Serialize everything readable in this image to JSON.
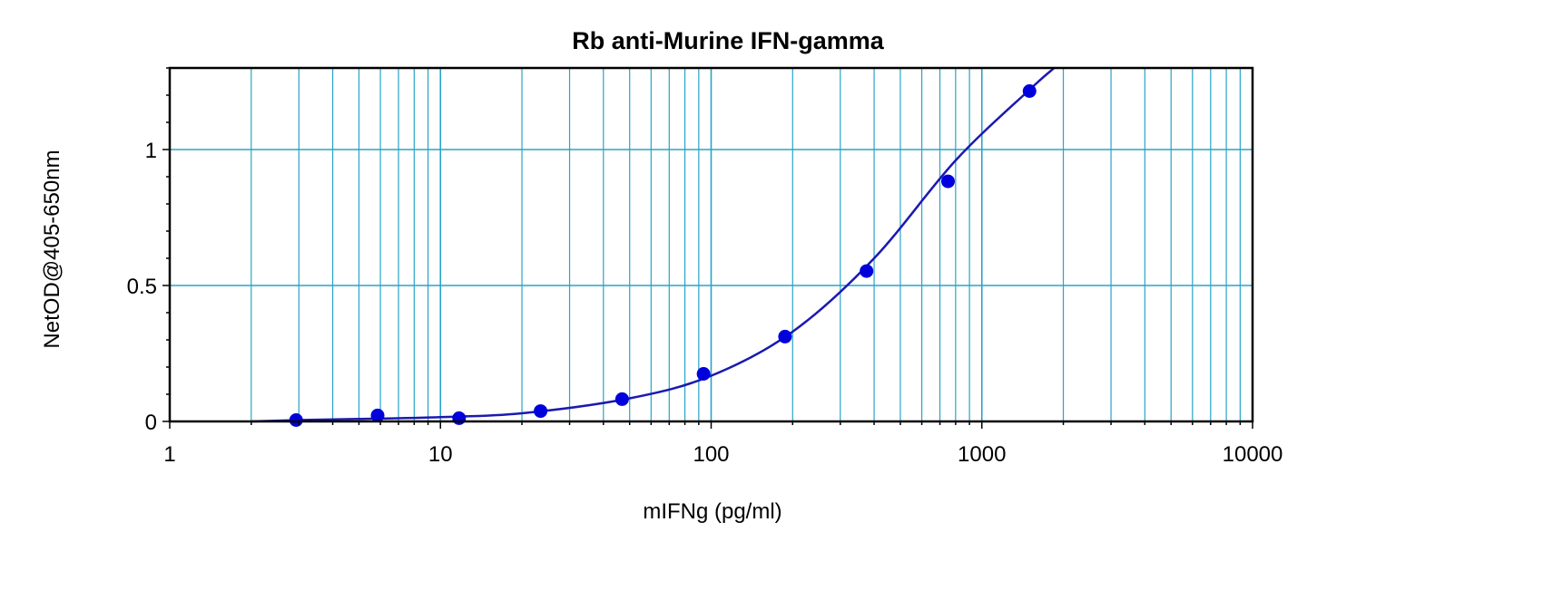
{
  "chart_data": {
    "type": "scatter",
    "title": "Rb anti-Murine IFN-gamma",
    "xlabel": "mIFNg (pg/ml)",
    "ylabel": "NetOD@405-650nm",
    "x_scale": "log",
    "xlim": [
      1,
      10000
    ],
    "ylim": [
      0,
      1.3
    ],
    "x_ticks": [
      1,
      10,
      100,
      1000,
      10000
    ],
    "x_tick_labels": [
      "1",
      "10",
      "100",
      "1000",
      "10000"
    ],
    "y_ticks": [
      0,
      0.5,
      1
    ],
    "y_tick_labels": [
      "0",
      "0.5",
      "1"
    ],
    "grid": true,
    "colors": {
      "grid": "#29a3c9",
      "series": "#0000dd",
      "curve": "#1a1ab0"
    },
    "series": [
      {
        "x": [
          2.93,
          5.86,
          11.72,
          23.44,
          46.88,
          93.75,
          187.5,
          375,
          750,
          1500
        ],
        "y": [
          0.005,
          0.022,
          0.012,
          0.038,
          0.082,
          0.175,
          0.312,
          0.553,
          0.883,
          1.215
        ]
      }
    ],
    "fit_curve": {
      "x": [
        2,
        3,
        5,
        10,
        20,
        50,
        100,
        200,
        400,
        800,
        1500,
        1850
      ],
      "y": [
        0.0,
        0.005,
        0.009,
        0.016,
        0.03,
        0.085,
        0.168,
        0.33,
        0.6,
        0.96,
        1.22,
        1.3
      ]
    }
  }
}
